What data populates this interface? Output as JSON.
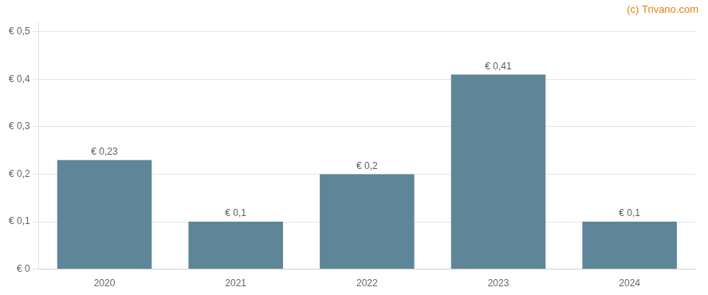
{
  "chart_data": {
    "type": "bar",
    "categories": [
      "2020",
      "2021",
      "2022",
      "2023",
      "2024"
    ],
    "values": [
      0.23,
      0.1,
      0.2,
      0.41,
      0.1
    ],
    "value_labels": [
      "€ 0,23",
      "€ 0,1",
      "€ 0,2",
      "€ 0,41",
      "€ 0,1"
    ],
    "data_labels": true,
    "color": "#5f8599",
    "ylim": [
      0,
      0.52
    ],
    "yticks": [
      {
        "value": 0.0,
        "label": "€ 0"
      },
      {
        "value": 0.1,
        "label": "€ 0,1"
      },
      {
        "value": 0.2,
        "label": "€ 0,2"
      },
      {
        "value": 0.3,
        "label": "€ 0,3"
      },
      {
        "value": 0.4,
        "label": "€ 0,4"
      },
      {
        "value": 0.5,
        "label": "€ 0,5"
      }
    ],
    "grid": true,
    "annotations": [
      {
        "text": "(c) Trivano.com",
        "color": "#e8820c"
      }
    ]
  }
}
